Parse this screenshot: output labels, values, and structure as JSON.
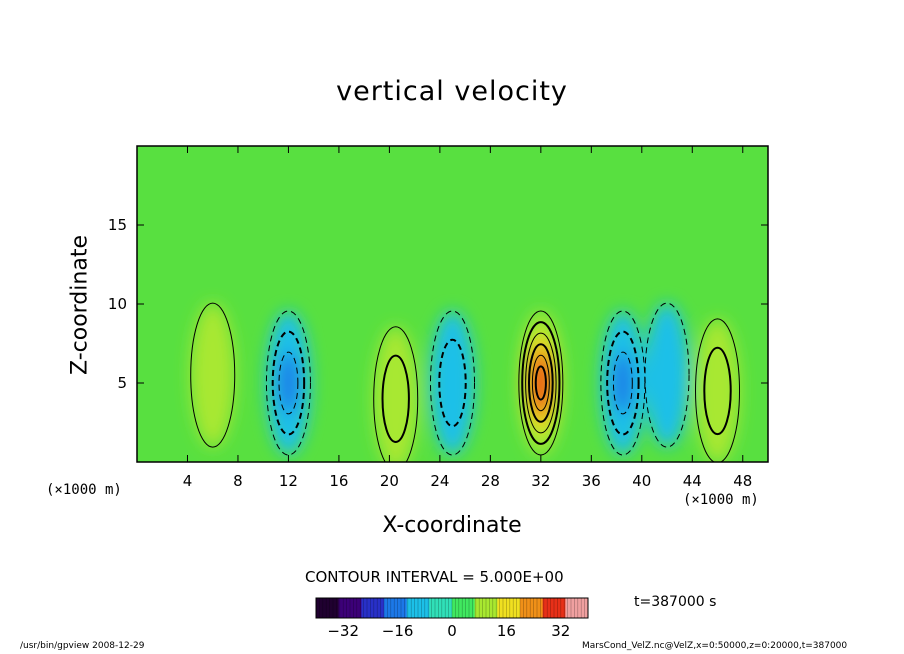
{
  "chart_data": {
    "type": "heatmap",
    "title": "vertical velocity",
    "xlabel": "X-coordinate",
    "ylabel": "Z-coordinate",
    "x_unit_label": "(×1000 m)",
    "xlim": [
      0,
      50
    ],
    "ylim": [
      0,
      20
    ],
    "x_ticks": [
      4,
      8,
      12,
      16,
      20,
      24,
      28,
      32,
      36,
      40,
      44,
      48
    ],
    "y_ticks": [
      5,
      10,
      15
    ],
    "colorbar": {
      "range": [
        -40,
        40
      ],
      "ticks": [
        -32,
        -16,
        0,
        16,
        32
      ],
      "colors": [
        "#200030",
        "#3c0078",
        "#2830c8",
        "#1c78e8",
        "#1cc0e8",
        "#30e0b8",
        "#40e860",
        "#a8e830",
        "#f0e020",
        "#f09018",
        "#e83018",
        "#f0a0a0"
      ]
    },
    "contour_interval_text": "CONTOUR INTERVAL = 5.000E+00",
    "features": [
      {
        "x": 6,
        "z": 5.5,
        "w": 5
      },
      {
        "x": 12,
        "z": 5,
        "w": -18
      },
      {
        "x": 20.5,
        "z": 4,
        "w": 14
      },
      {
        "x": 25,
        "z": 5,
        "w": -12
      },
      {
        "x": 32,
        "z": 5,
        "w": 33
      },
      {
        "x": 38.5,
        "z": 5,
        "w": -19
      },
      {
        "x": 42,
        "z": 5.5,
        "w": -8
      },
      {
        "x": 46,
        "z": 4.5,
        "w": 13
      }
    ]
  },
  "time_label": "t=387000  s",
  "footer": {
    "left": "/usr/bin/gpview   2008-12-29",
    "right": "MarsCond_VelZ.nc@VelZ,x=0:50000,z=0:20000,t=387000"
  }
}
